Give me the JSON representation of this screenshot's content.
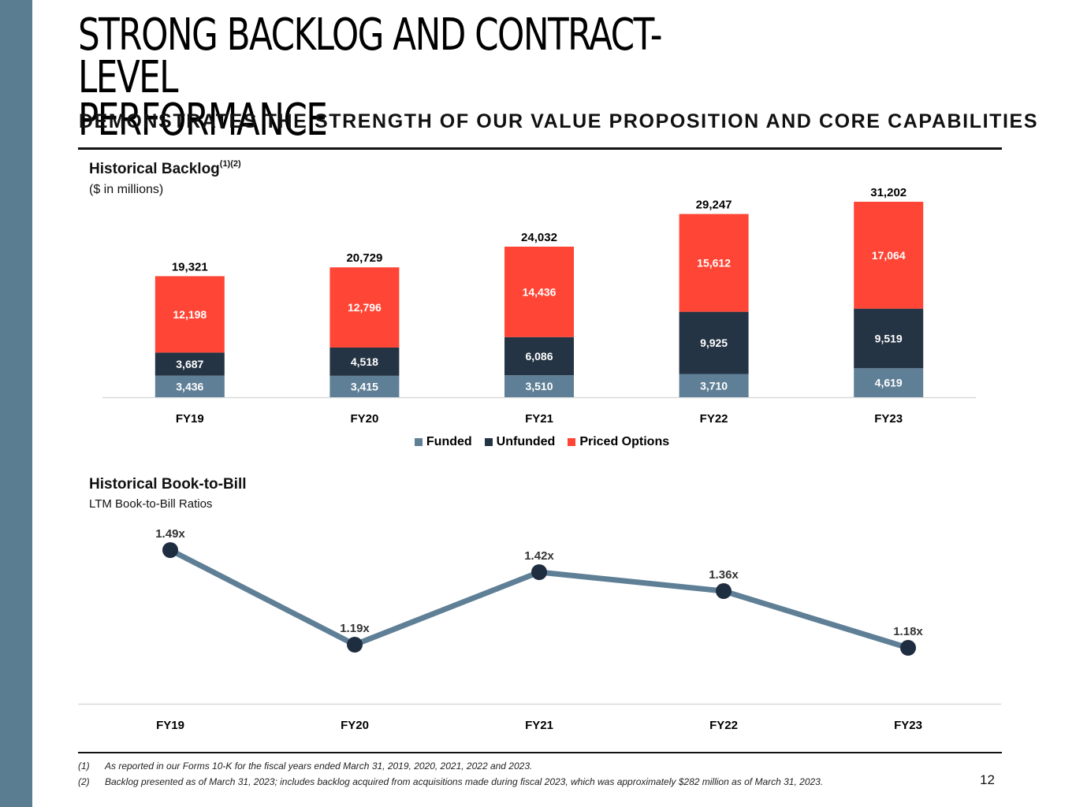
{
  "page": {
    "title": "STRONG BACKLOG AND CONTRACT-LEVEL\nPERFORMANCE",
    "subtitle": "DEMONSTRATES THE STRENGTH OF OUR VALUE PROPOSITION AND CORE CAPABILITIES",
    "page_number": "12"
  },
  "colors": {
    "sidebar": "#5a7d92",
    "funded": "#5f7f96",
    "unfunded": "#253444",
    "priced_options": "#ff4535",
    "line": "#5f7f96",
    "marker": "#1f2d40"
  },
  "backlog_section": {
    "title": "Historical Backlog",
    "superscript": "(1)(2)",
    "subtitle": "($ in millions)"
  },
  "book_to_bill_section": {
    "title": "Historical Book-to-Bill",
    "subtitle": "LTM Book-to-Bill Ratios"
  },
  "legend": [
    {
      "name": "Funded",
      "color": "#5f7f96"
    },
    {
      "name": "Unfunded",
      "color": "#253444"
    },
    {
      "name": "Priced Options",
      "color": "#ff4535"
    }
  ],
  "footnotes": [
    {
      "num": "(1)",
      "text": "As reported in our Forms 10-K for the fiscal years ended March 31, 2019, 2020, 2021, 2022 and 2023."
    },
    {
      "num": "(2)",
      "text": "Backlog presented as of March 31, 2023; includes backlog acquired from acquisitions made during fiscal 2023, which was approximately $282 million as of March 31, 2023."
    }
  ],
  "chart_data": [
    {
      "type": "bar",
      "stacked": true,
      "title": "Historical Backlog(1)(2)",
      "subtitle": "($ in millions)",
      "categories": [
        "FY19",
        "FY20",
        "FY21",
        "FY22",
        "FY23"
      ],
      "series": [
        {
          "name": "Funded",
          "values": [
            3436,
            3415,
            3510,
            3710,
            4619
          ],
          "labels": [
            "3,436",
            "3,415",
            "3,510",
            "3,710",
            "4,619"
          ]
        },
        {
          "name": "Unfunded",
          "values": [
            3687,
            4518,
            6086,
            9925,
            9519
          ],
          "labels": [
            "3,687",
            "4,518",
            "6,086",
            "9,925",
            "9,519"
          ]
        },
        {
          "name": "Priced Options",
          "values": [
            12198,
            12796,
            14436,
            15612,
            17064
          ],
          "labels": [
            "12,198",
            "12,796",
            "14,436",
            "15,612",
            "17,064"
          ]
        }
      ],
      "totals": [
        19321,
        20729,
        24032,
        29247,
        31202
      ],
      "total_labels": [
        "19,321",
        "20,729",
        "24,032",
        "29,247",
        "31,202"
      ],
      "xlabel": "",
      "ylabel": "",
      "ylim": [
        0,
        31202
      ],
      "grid": false,
      "legend_position": "bottom"
    },
    {
      "type": "line",
      "title": "Historical Book-to-Bill",
      "subtitle": "LTM Book-to-Bill Ratios",
      "categories": [
        "FY19",
        "FY20",
        "FY21",
        "FY22",
        "FY23"
      ],
      "series": [
        {
          "name": "LTM Book-to-Bill",
          "values": [
            1.49,
            1.19,
            1.42,
            1.36,
            1.18
          ],
          "labels": [
            "1.49x",
            "1.19x",
            "1.42x",
            "1.36x",
            "1.18x"
          ]
        }
      ],
      "xlabel": "",
      "ylabel": "",
      "ylim": [
        0.9,
        1.55
      ],
      "grid": false,
      "legend_position": "none"
    }
  ]
}
